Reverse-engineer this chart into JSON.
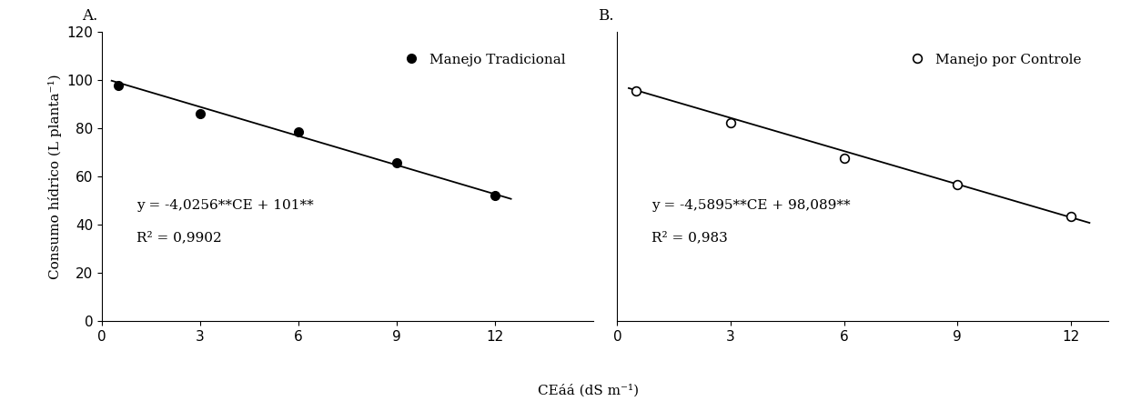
{
  "panel_A": {
    "label": "A.",
    "x_data": [
      0.5,
      3,
      6,
      9,
      12
    ],
    "y_data": [
      97.9,
      86.0,
      78.5,
      65.7,
      52.0
    ],
    "slope": -4.0256,
    "intercept": 101,
    "equation": "y = -4,0256**CE + 101**",
    "r2": "R² = 0,9902",
    "marker_filled": true,
    "legend_label": "Manejo Tradicional",
    "xlim": [
      0,
      15
    ],
    "xticks": [
      0,
      3,
      6,
      9,
      12
    ],
    "ylim": [
      0,
      120
    ],
    "yticks": [
      0,
      20,
      40,
      60,
      80,
      100,
      120
    ],
    "line_xstart": 0.3,
    "line_xend": 12.5
  },
  "panel_B": {
    "label": "B.",
    "x_data": [
      0.5,
      3,
      6,
      9,
      12
    ],
    "y_data": [
      95.6,
      82.5,
      67.5,
      56.5,
      43.5
    ],
    "slope": -4.5895,
    "intercept": 98.089,
    "equation": "y = -4,5895**CE + 98,089**",
    "r2": "R² = 0,983",
    "marker_filled": false,
    "legend_label": "Manejo por Controle",
    "xlim": [
      0,
      13
    ],
    "xticks": [
      0,
      3,
      6,
      9,
      12
    ],
    "ylim": [
      0,
      120
    ],
    "yticks": [
      0,
      20,
      40,
      60,
      80,
      100,
      120
    ],
    "line_xstart": 0.3,
    "line_xend": 12.5
  },
  "ylabel": "Consumo hídrico (L planta⁻¹)",
  "xlabel": "CEáá (dS m⁻¹)",
  "background_color": "#ffffff",
  "line_color": "black",
  "font_size": 11,
  "tick_font_size": 11
}
